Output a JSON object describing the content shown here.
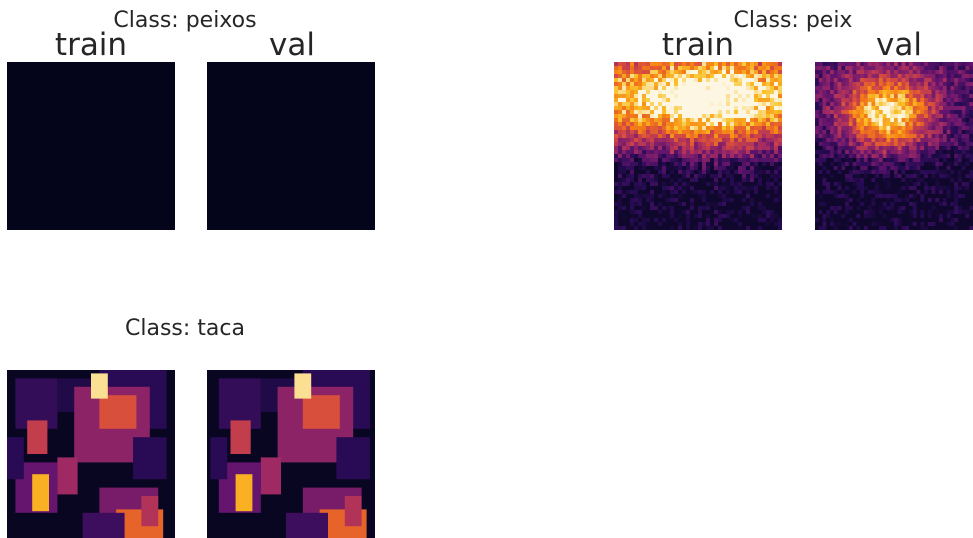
{
  "chart_data": [
    {
      "type": "heatmap",
      "title": "Class: peixos",
      "panels": [
        {
          "label": "train",
          "pattern": "empty"
        },
        {
          "label": "val",
          "pattern": "empty"
        }
      ]
    },
    {
      "type": "heatmap",
      "title": "Class: peix",
      "panels": [
        {
          "label": "train",
          "pattern": "diffuse"
        },
        {
          "label": "val",
          "pattern": "diffuse"
        }
      ]
    },
    {
      "type": "heatmap",
      "title": "Class: taca",
      "panels": [
        {
          "label": "",
          "pattern": "blocks"
        },
        {
          "label": "",
          "pattern": "blocks"
        }
      ]
    }
  ],
  "colors": {
    "colormap": "inferno-like",
    "low": "#04051a",
    "high": "#fcf6e2"
  }
}
